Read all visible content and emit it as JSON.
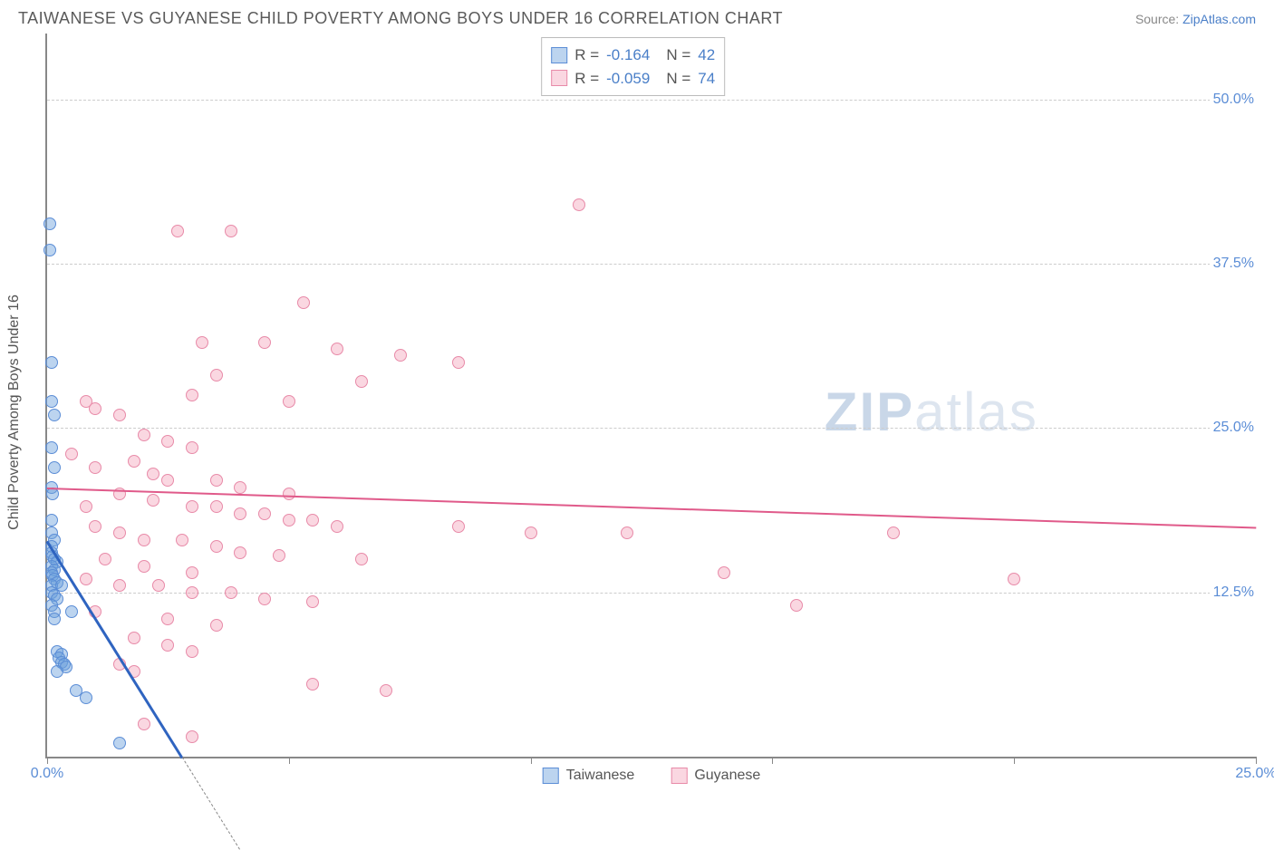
{
  "title": "TAIWANESE VS GUYANESE CHILD POVERTY AMONG BOYS UNDER 16 CORRELATION CHART",
  "source_label": "Source:",
  "source_name": "ZipAtlas.com",
  "watermark": {
    "left": "ZIP",
    "right": "atlas"
  },
  "chart": {
    "type": "scatter",
    "ylabel": "Child Poverty Among Boys Under 16",
    "background_color": "#ffffff",
    "grid_color": "#cccccc",
    "axis_color": "#888888",
    "tick_label_color": "#5b8dd6",
    "xlim": [
      0,
      25
    ],
    "ylim": [
      0,
      55
    ],
    "yticks": [
      {
        "v": 12.5,
        "label": "12.5%"
      },
      {
        "v": 25.0,
        "label": "25.0%"
      },
      {
        "v": 37.5,
        "label": "37.5%"
      },
      {
        "v": 50.0,
        "label": "50.0%"
      }
    ],
    "xticks": [
      {
        "v": 0,
        "label": "0.0%"
      },
      {
        "v": 5,
        "label": ""
      },
      {
        "v": 10,
        "label": ""
      },
      {
        "v": 15,
        "label": ""
      },
      {
        "v": 20,
        "label": ""
      },
      {
        "v": 25,
        "label": "25.0%"
      }
    ],
    "series": [
      {
        "name": "Taiwanese",
        "marker_fill": "rgba(106,160,220,0.45)",
        "marker_stroke": "#5b8dd6",
        "marker_size": 14,
        "trend": {
          "x1": 0,
          "y1": 16.5,
          "x2": 2.8,
          "y2": 0,
          "color": "#2f64c0",
          "width": 2.5,
          "dash_extend": true
        },
        "R": "-0.164",
        "N": "42",
        "points": [
          [
            0.05,
            40.5
          ],
          [
            0.05,
            38.5
          ],
          [
            0.1,
            30.0
          ],
          [
            0.1,
            27.0
          ],
          [
            0.15,
            26.0
          ],
          [
            0.1,
            23.5
          ],
          [
            0.15,
            22.0
          ],
          [
            0.1,
            20.5
          ],
          [
            0.12,
            20.0
          ],
          [
            0.1,
            18.0
          ],
          [
            0.1,
            17.0
          ],
          [
            0.15,
            16.5
          ],
          [
            0.1,
            16.0
          ],
          [
            0.1,
            15.5
          ],
          [
            0.12,
            15.2
          ],
          [
            0.15,
            15.0
          ],
          [
            0.2,
            14.8
          ],
          [
            0.1,
            14.5
          ],
          [
            0.15,
            14.2
          ],
          [
            0.1,
            14.0
          ],
          [
            0.12,
            13.8
          ],
          [
            0.15,
            13.5
          ],
          [
            0.2,
            13.2
          ],
          [
            0.1,
            13.0
          ],
          [
            0.3,
            13.0
          ],
          [
            0.1,
            12.5
          ],
          [
            0.15,
            12.3
          ],
          [
            0.2,
            12.0
          ],
          [
            0.1,
            11.5
          ],
          [
            0.15,
            11.0
          ],
          [
            0.5,
            11.0
          ],
          [
            0.15,
            10.5
          ],
          [
            0.2,
            8.0
          ],
          [
            0.3,
            7.8
          ],
          [
            0.25,
            7.5
          ],
          [
            0.3,
            7.2
          ],
          [
            0.35,
            7.0
          ],
          [
            0.4,
            6.8
          ],
          [
            0.2,
            6.5
          ],
          [
            0.6,
            5.0
          ],
          [
            0.8,
            4.5
          ],
          [
            1.5,
            1.0
          ]
        ]
      },
      {
        "name": "Guyanese",
        "marker_fill": "rgba(240,140,170,0.35)",
        "marker_stroke": "#e88aa8",
        "marker_size": 14,
        "trend": {
          "x1": 0,
          "y1": 20.5,
          "x2": 25,
          "y2": 17.5,
          "color": "#e05a8a",
          "width": 2,
          "dash_extend": false
        },
        "R": "-0.059",
        "N": "74",
        "points": [
          [
            11.0,
            42.0
          ],
          [
            2.7,
            40.0
          ],
          [
            3.8,
            40.0
          ],
          [
            5.3,
            34.5
          ],
          [
            3.2,
            31.5
          ],
          [
            4.5,
            31.5
          ],
          [
            6.0,
            31.0
          ],
          [
            7.3,
            30.5
          ],
          [
            8.5,
            30.0
          ],
          [
            3.5,
            29.0
          ],
          [
            6.5,
            28.5
          ],
          [
            3.0,
            27.5
          ],
          [
            5.0,
            27.0
          ],
          [
            0.8,
            27.0
          ],
          [
            1.0,
            26.5
          ],
          [
            1.5,
            26.0
          ],
          [
            2.0,
            24.5
          ],
          [
            2.5,
            24.0
          ],
          [
            3.0,
            23.5
          ],
          [
            0.5,
            23.0
          ],
          [
            1.0,
            22.0
          ],
          [
            1.8,
            22.5
          ],
          [
            2.2,
            21.5
          ],
          [
            2.5,
            21.0
          ],
          [
            3.5,
            21.0
          ],
          [
            4.0,
            20.5
          ],
          [
            5.0,
            20.0
          ],
          [
            1.5,
            20.0
          ],
          [
            2.2,
            19.5
          ],
          [
            3.0,
            19.0
          ],
          [
            3.5,
            19.0
          ],
          [
            4.0,
            18.5
          ],
          [
            4.5,
            18.5
          ],
          [
            5.0,
            18.0
          ],
          [
            5.5,
            18.0
          ],
          [
            6.0,
            17.5
          ],
          [
            8.5,
            17.5
          ],
          [
            10.0,
            17.0
          ],
          [
            12.0,
            17.0
          ],
          [
            17.5,
            17.0
          ],
          [
            1.0,
            17.5
          ],
          [
            1.5,
            17.0
          ],
          [
            2.0,
            16.5
          ],
          [
            2.8,
            16.5
          ],
          [
            3.5,
            16.0
          ],
          [
            4.0,
            15.5
          ],
          [
            4.8,
            15.3
          ],
          [
            6.5,
            15.0
          ],
          [
            1.2,
            15.0
          ],
          [
            2.0,
            14.5
          ],
          [
            3.0,
            14.0
          ],
          [
            14.0,
            14.0
          ],
          [
            20.0,
            13.5
          ],
          [
            0.8,
            13.5
          ],
          [
            1.5,
            13.0
          ],
          [
            2.3,
            13.0
          ],
          [
            3.0,
            12.5
          ],
          [
            3.8,
            12.5
          ],
          [
            4.5,
            12.0
          ],
          [
            5.5,
            11.8
          ],
          [
            15.5,
            11.5
          ],
          [
            1.0,
            11.0
          ],
          [
            2.5,
            10.5
          ],
          [
            3.5,
            10.0
          ],
          [
            1.8,
            9.0
          ],
          [
            2.5,
            8.5
          ],
          [
            3.0,
            8.0
          ],
          [
            1.5,
            7.0
          ],
          [
            1.8,
            6.5
          ],
          [
            5.5,
            5.5
          ],
          [
            7.0,
            5.0
          ],
          [
            2.0,
            2.5
          ],
          [
            3.0,
            1.5
          ],
          [
            0.8,
            19.0
          ]
        ]
      }
    ],
    "legend_bottom": [
      {
        "label": "Taiwanese",
        "fill": "rgba(106,160,220,0.45)",
        "stroke": "#5b8dd6"
      },
      {
        "label": "Guyanese",
        "fill": "rgba(240,140,170,0.35)",
        "stroke": "#e88aa8"
      }
    ]
  }
}
